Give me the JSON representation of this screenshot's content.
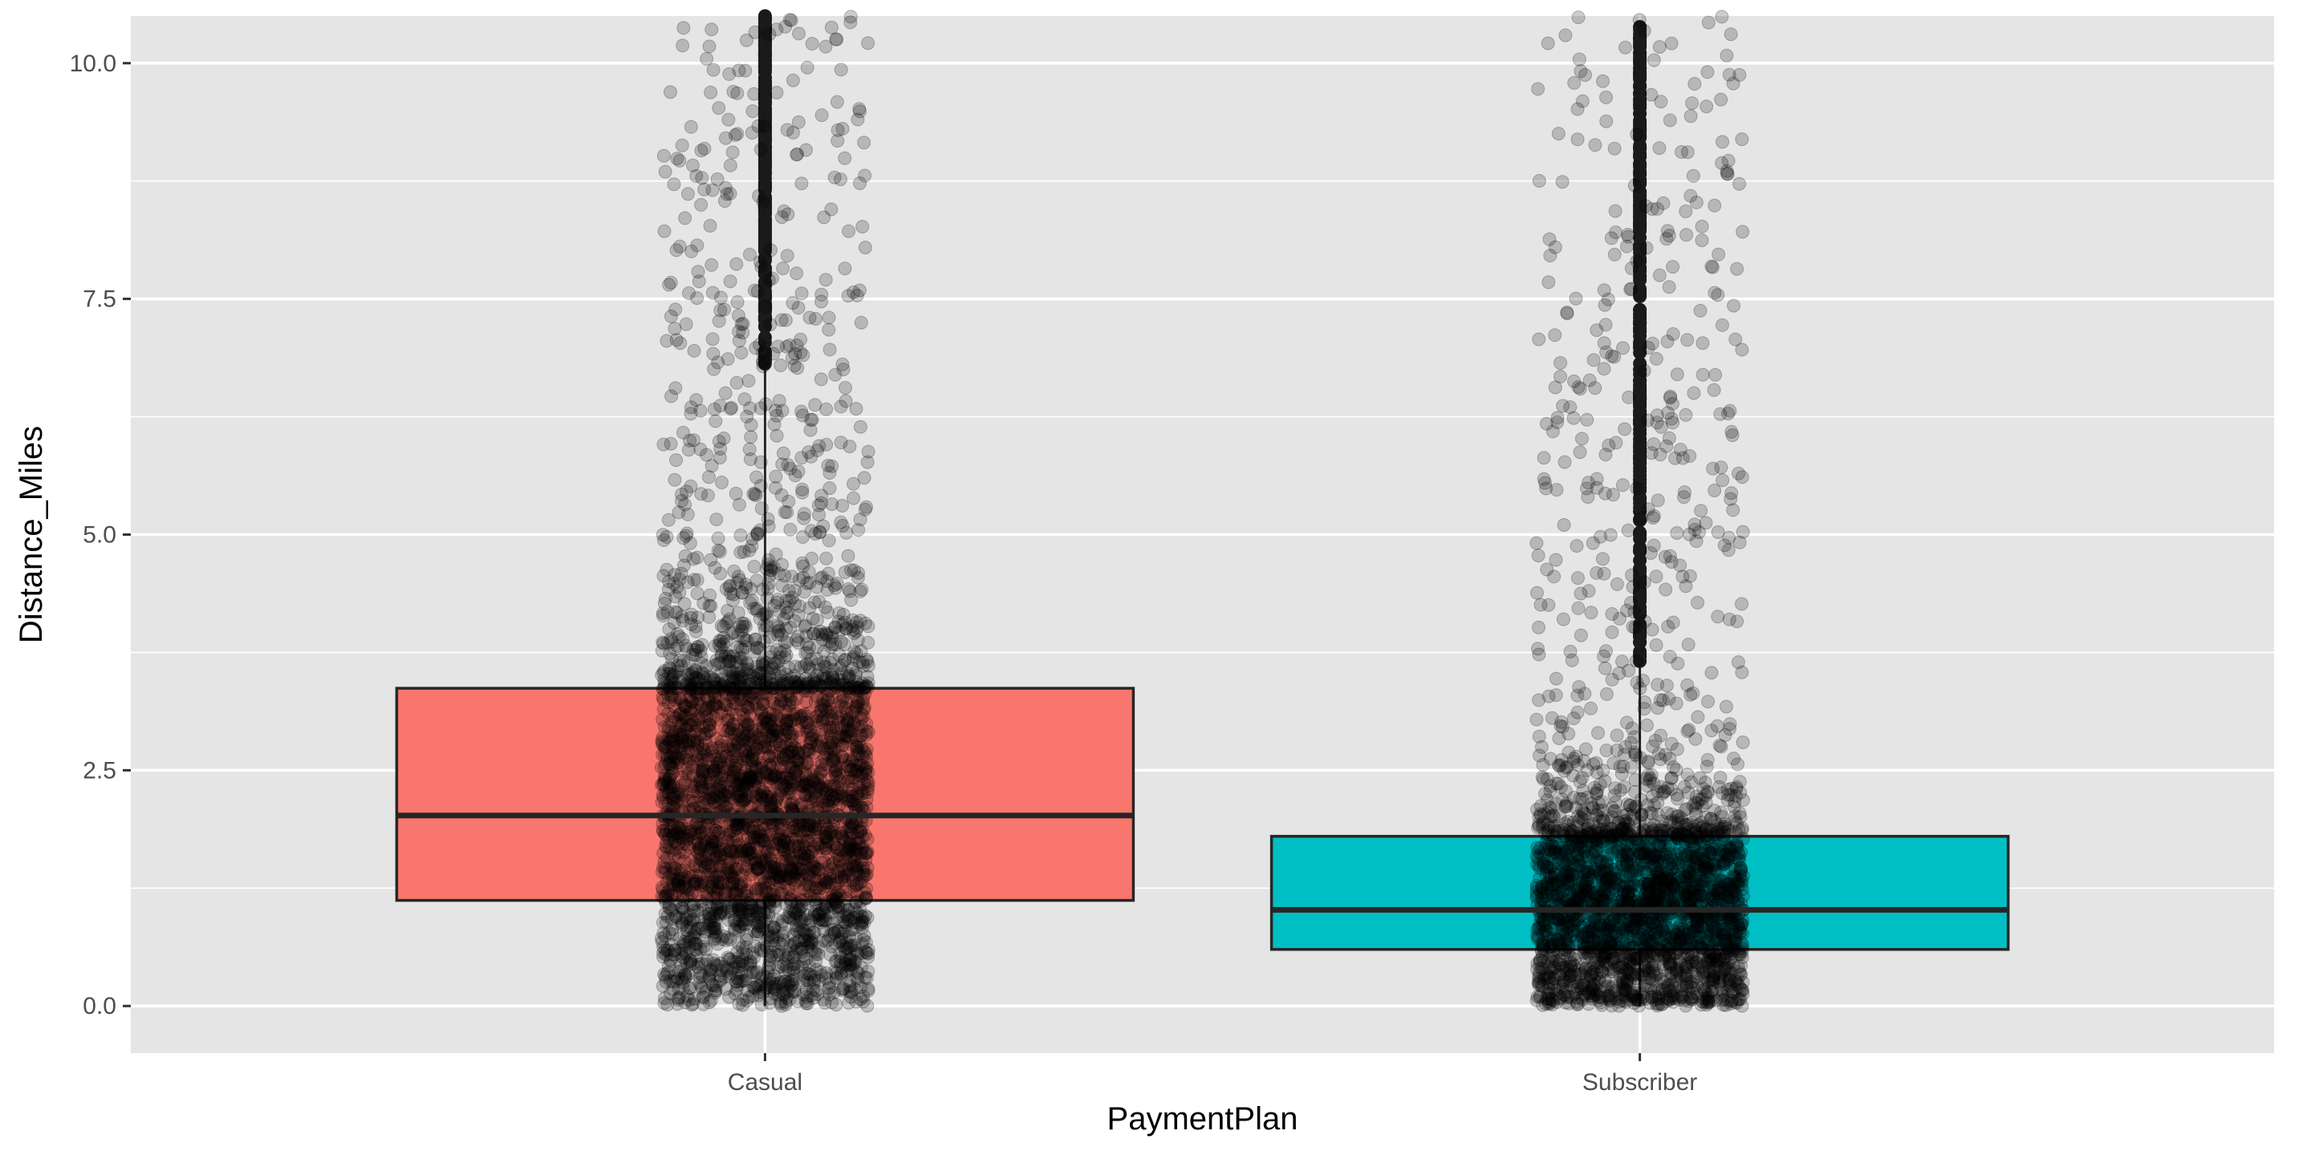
{
  "chart_data": {
    "type": "boxplot",
    "xlabel": "PaymentPlan",
    "ylabel": "Distance_Miles",
    "categories": [
      "Casual",
      "Subscriber"
    ],
    "ylim": [
      -0.5,
      10.5
    ],
    "yticks": [
      0.0,
      2.5,
      5.0,
      7.5,
      10.0
    ],
    "ytick_labels": [
      "0.0",
      "2.5",
      "5.0",
      "7.5",
      "10.0"
    ],
    "grid": true,
    "legend": "none",
    "series": [
      {
        "category": "Casual",
        "color": "#F8766D",
        "q1": 1.12,
        "median": 2.02,
        "q3": 3.37,
        "whisker_low": 0.0,
        "whisker_high": 6.75,
        "outlier_min": 6.8,
        "jitter_max": 10.5
      },
      {
        "category": "Subscriber",
        "color": "#00BFC4",
        "q1": 0.6,
        "median": 1.02,
        "q3": 1.8,
        "whisker_low": 0.0,
        "whisker_high": 3.6,
        "outlier_min": 3.6,
        "jitter_max": 10.5
      }
    ],
    "colors": {
      "panel": "#E5E5E5",
      "grid": "#FFFFFF",
      "box_outline": "#262626",
      "points": "#000000"
    }
  }
}
